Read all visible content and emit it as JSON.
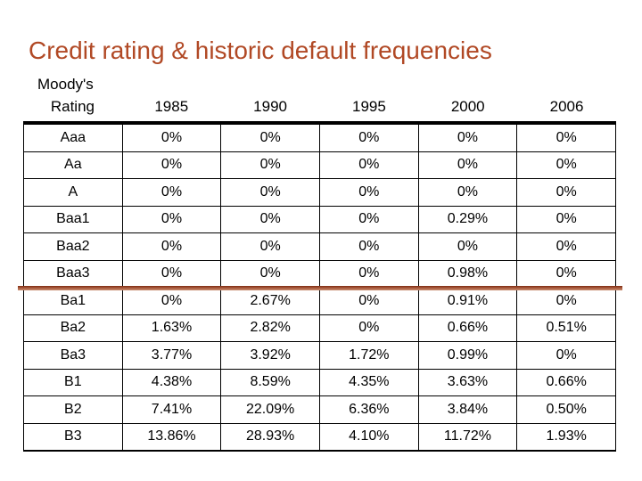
{
  "title": "Credit rating & historic default frequencies",
  "header": {
    "org_line": "Moody's",
    "rating_label": "Rating"
  },
  "chart_data": {
    "type": "table",
    "title": "Credit rating & historic default frequencies",
    "columns": [
      "Moody's Rating",
      "1985",
      "1990",
      "1995",
      "2000",
      "2006"
    ],
    "years": [
      "1985",
      "1990",
      "1995",
      "2000",
      "2006"
    ],
    "rows": [
      {
        "rating": "Aaa",
        "values": [
          "0%",
          "0%",
          "0%",
          "0%",
          "0%"
        ]
      },
      {
        "rating": "Aa",
        "values": [
          "0%",
          "0%",
          "0%",
          "0%",
          "0%"
        ]
      },
      {
        "rating": "A",
        "values": [
          "0%",
          "0%",
          "0%",
          "0%",
          "0%"
        ]
      },
      {
        "rating": "Baa1",
        "values": [
          "0%",
          "0%",
          "0%",
          "0.29%",
          "0%"
        ]
      },
      {
        "rating": "Baa2",
        "values": [
          "0%",
          "0%",
          "0%",
          "0%",
          "0%"
        ]
      },
      {
        "rating": "Baa3",
        "values": [
          "0%",
          "0%",
          "0%",
          "0.98%",
          "0%"
        ]
      },
      {
        "rating": "Ba1",
        "values": [
          "0%",
          "2.67%",
          "0%",
          "0.91%",
          "0%"
        ]
      },
      {
        "rating": "Ba2",
        "values": [
          "1.63%",
          "2.82%",
          "0%",
          "0.66%",
          "0.51%"
        ]
      },
      {
        "rating": "Ba3",
        "values": [
          "3.77%",
          "3.92%",
          "1.72%",
          "0.99%",
          "0%"
        ]
      },
      {
        "rating": "B1",
        "values": [
          "4.38%",
          "8.59%",
          "4.35%",
          "3.63%",
          "0.66%"
        ]
      },
      {
        "rating": "B2",
        "values": [
          "7.41%",
          "22.09%",
          "6.36%",
          "3.84%",
          "0.50%"
        ]
      },
      {
        "rating": "B3",
        "values": [
          "13.86%",
          "28.93%",
          "4.10%",
          "11.72%",
          "1.93%"
        ]
      }
    ],
    "divider_after_rating": "Baa3"
  },
  "colors": {
    "title": "#B14925",
    "divider_top": "#7E2B12",
    "divider_bottom": "#C98D71",
    "grid": "#000000",
    "background": "#ffffff"
  }
}
